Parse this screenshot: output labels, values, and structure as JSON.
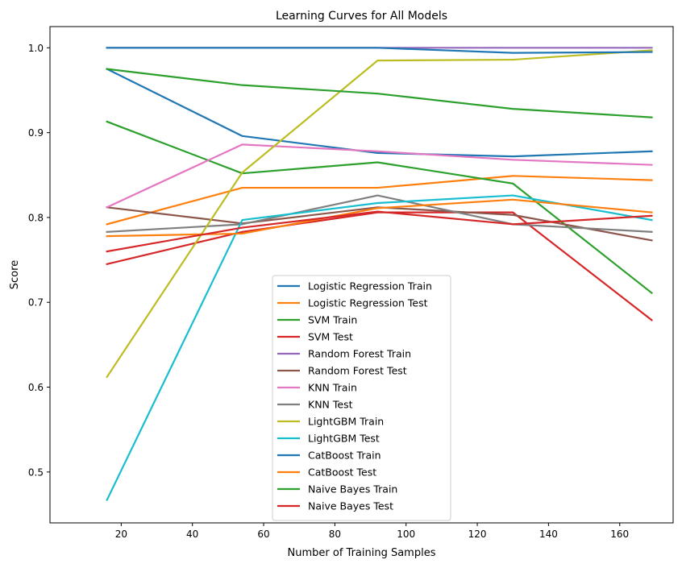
{
  "chart_data": {
    "type": "line",
    "title": "Learning Curves for All Models",
    "xlabel": "Number of Training Samples",
    "ylabel": "Score",
    "xlim": [
      0,
      175
    ],
    "ylim": [
      0.44,
      1.025
    ],
    "xticks": [
      20,
      40,
      60,
      80,
      100,
      120,
      140,
      160
    ],
    "yticks": [
      0.5,
      0.6,
      0.7,
      0.8,
      0.9,
      1.0
    ],
    "ytick_labels": [
      "0.5",
      "0.6",
      "0.7",
      "0.8",
      "0.9",
      "1.0"
    ],
    "grid": false,
    "legend_position": "lower-center",
    "x": [
      16,
      54,
      92,
      130,
      169
    ],
    "series": [
      {
        "name": "Logistic Regression Train",
        "color": "#1f77b4",
        "values": [
          0.975,
          0.896,
          0.876,
          0.872,
          0.878
        ]
      },
      {
        "name": "Logistic Regression Test",
        "color": "#ff7f0e",
        "values": [
          0.792,
          0.835,
          0.835,
          0.849,
          0.844
        ]
      },
      {
        "name": "SVM Train",
        "color": "#2ca02c",
        "values": [
          0.913,
          0.852,
          0.865,
          0.84,
          0.711
        ]
      },
      {
        "name": "SVM Test",
        "color": "#d62728",
        "values": [
          0.745,
          0.783,
          0.806,
          0.806,
          0.679
        ]
      },
      {
        "name": "Random Forest Train",
        "color": "#9467bd",
        "values": [
          1.0,
          1.0,
          1.0,
          1.0,
          1.0
        ]
      },
      {
        "name": "Random Forest Test",
        "color": "#8c564b",
        "values": [
          0.812,
          0.793,
          0.812,
          0.803,
          0.773
        ]
      },
      {
        "name": "KNN Train",
        "color": "#e377c2",
        "values": [
          0.812,
          0.886,
          0.878,
          0.868,
          0.862
        ]
      },
      {
        "name": "KNN Test",
        "color": "#7f7f7f",
        "values": [
          0.783,
          0.792,
          0.826,
          0.792,
          0.783
        ]
      },
      {
        "name": "LightGBM Train",
        "color": "#bcbd22",
        "values": [
          0.612,
          0.853,
          0.985,
          0.986,
          0.997
        ]
      },
      {
        "name": "LightGBM Test",
        "color": "#17becf",
        "values": [
          0.467,
          0.797,
          0.817,
          0.826,
          0.797
        ]
      },
      {
        "name": "CatBoost Train",
        "color": "#1f77b4",
        "values": [
          1.0,
          1.0,
          1.0,
          0.994,
          0.995
        ]
      },
      {
        "name": "CatBoost Test",
        "color": "#ff7f0e",
        "values": [
          0.778,
          0.781,
          0.811,
          0.821,
          0.806
        ]
      },
      {
        "name": "Naive Bayes Train",
        "color": "#2ca02c",
        "values": [
          0.975,
          0.956,
          0.946,
          0.928,
          0.918
        ]
      },
      {
        "name": "Naive Bayes Test",
        "color": "#d62728",
        "values": [
          0.76,
          0.788,
          0.807,
          0.792,
          0.802
        ]
      }
    ]
  }
}
